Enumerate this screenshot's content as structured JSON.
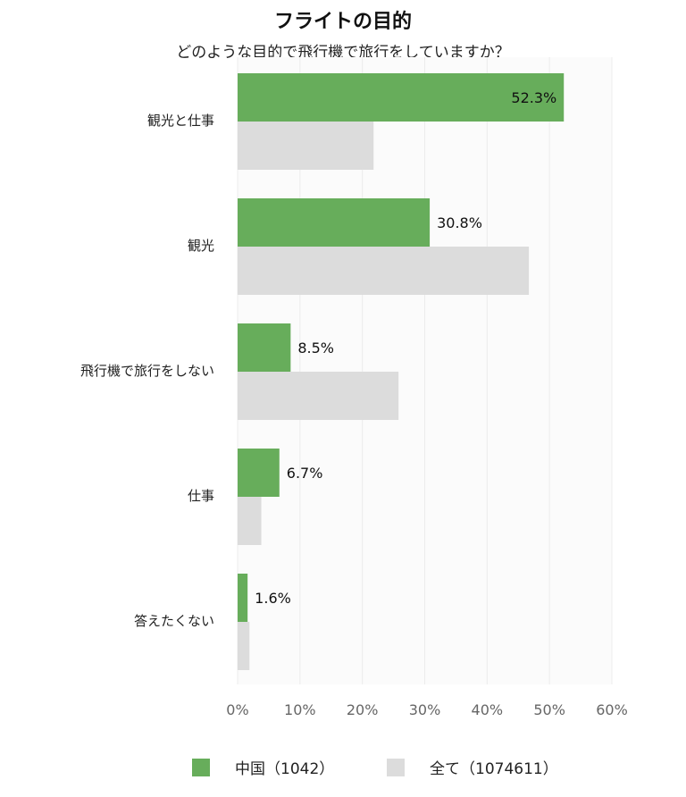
{
  "chart_data": {
    "type": "bar",
    "orientation": "horizontal",
    "title": "フライトの目的",
    "subtitle": "どのような目的で飛行機で旅行をしていますか？",
    "categories": [
      "観光と仕事",
      "観光",
      "飛行機で旅行をしない",
      "仕事",
      "答えたくない"
    ],
    "series": [
      {
        "name": "中国（1042）",
        "color": "#67ad5b",
        "values": [
          52.3,
          30.8,
          8.5,
          6.7,
          1.6
        ],
        "labels": [
          "52.3%",
          "30.8%",
          "8.5%",
          "6.7%",
          "1.6%"
        ]
      },
      {
        "name": "全て（1074611）",
        "color": "#dcdcdc",
        "values": [
          21.8,
          46.7,
          25.8,
          3.8,
          1.9
        ]
      }
    ],
    "xlim": [
      0,
      60
    ],
    "xticks": [
      "0%",
      "10%",
      "20%",
      "30%",
      "40%",
      "50%",
      "60%"
    ],
    "grid": true,
    "legend_position": "bottom"
  }
}
